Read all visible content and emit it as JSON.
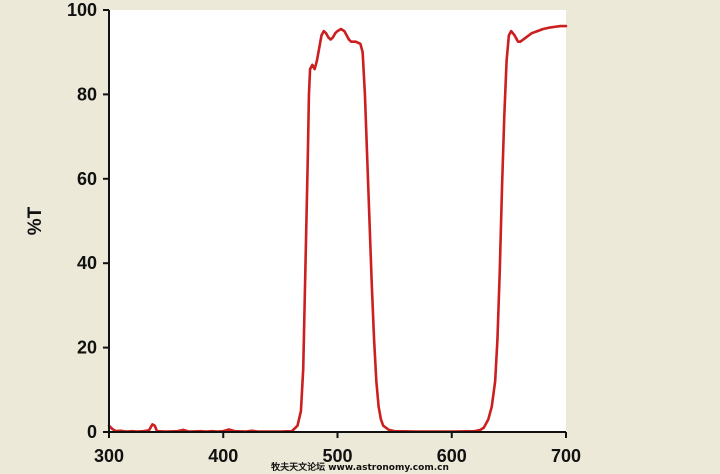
{
  "chart_data": {
    "type": "line",
    "ylabel": "%T",
    "xlim": [
      300,
      700
    ],
    "ylim": [
      0,
      100
    ],
    "x_ticks": [
      300,
      400,
      500,
      600,
      700
    ],
    "y_ticks": [
      0,
      20,
      40,
      60,
      80,
      100
    ],
    "grid": false,
    "colors": {
      "line": "#cc1f1f",
      "plot_bg": "#ffffff",
      "page_bg": "#ece9d8",
      "axis": "#111111"
    },
    "series": [
      {
        "values": [
          [
            300,
            1.5
          ],
          [
            303,
            0.7
          ],
          [
            306,
            0.2
          ],
          [
            310,
            0.3
          ],
          [
            315,
            0.1
          ],
          [
            320,
            0.2
          ],
          [
            325,
            0.1
          ],
          [
            330,
            0.2
          ],
          [
            335,
            0.4
          ],
          [
            338,
            1.8
          ],
          [
            340,
            1.5
          ],
          [
            342,
            0.2
          ],
          [
            350,
            0.1
          ],
          [
            360,
            0.2
          ],
          [
            365,
            0.5
          ],
          [
            370,
            0.1
          ],
          [
            380,
            0.2
          ],
          [
            385,
            0.1
          ],
          [
            390,
            0.2
          ],
          [
            395,
            0.1
          ],
          [
            400,
            0.2
          ],
          [
            405,
            0.6
          ],
          [
            410,
            0.2
          ],
          [
            420,
            0.1
          ],
          [
            425,
            0.3
          ],
          [
            430,
            0.1
          ],
          [
            440,
            0.1
          ],
          [
            450,
            0.1
          ],
          [
            460,
            0.2
          ],
          [
            465,
            1.5
          ],
          [
            468,
            5
          ],
          [
            470,
            15
          ],
          [
            472,
            40
          ],
          [
            474,
            65
          ],
          [
            475,
            80
          ],
          [
            476,
            86
          ],
          [
            478,
            87
          ],
          [
            480,
            86
          ],
          [
            482,
            88
          ],
          [
            484,
            91
          ],
          [
            486,
            94
          ],
          [
            488,
            95
          ],
          [
            490,
            94.5
          ],
          [
            492,
            93.5
          ],
          [
            494,
            93
          ],
          [
            496,
            93.5
          ],
          [
            498,
            94.5
          ],
          [
            500,
            95
          ],
          [
            503,
            95.5
          ],
          [
            506,
            95
          ],
          [
            508,
            94
          ],
          [
            510,
            93
          ],
          [
            512,
            92.5
          ],
          [
            516,
            92.5
          ],
          [
            520,
            92
          ],
          [
            522,
            90
          ],
          [
            524,
            80
          ],
          [
            526,
            65
          ],
          [
            528,
            50
          ],
          [
            530,
            35
          ],
          [
            532,
            22
          ],
          [
            534,
            12
          ],
          [
            536,
            6
          ],
          [
            538,
            3
          ],
          [
            540,
            1.5
          ],
          [
            545,
            0.5
          ],
          [
            550,
            0.2
          ],
          [
            570,
            0.1
          ],
          [
            600,
            0.1
          ],
          [
            620,
            0.2
          ],
          [
            625,
            0.5
          ],
          [
            628,
            1
          ],
          [
            632,
            3
          ],
          [
            635,
            6
          ],
          [
            638,
            12
          ],
          [
            640,
            22
          ],
          [
            642,
            38
          ],
          [
            644,
            58
          ],
          [
            646,
            75
          ],
          [
            648,
            88
          ],
          [
            650,
            94
          ],
          [
            652,
            95
          ],
          [
            655,
            94
          ],
          [
            658,
            92.5
          ],
          [
            660,
            92.5
          ],
          [
            665,
            93.5
          ],
          [
            670,
            94.5
          ],
          [
            675,
            95
          ],
          [
            680,
            95.5
          ],
          [
            685,
            95.8
          ],
          [
            690,
            96
          ],
          [
            695,
            96.2
          ],
          [
            700,
            96.2
          ]
        ]
      }
    ]
  },
  "footer": {
    "watermark": "牧夫天文论坛 www.astronomy.com.cn"
  }
}
